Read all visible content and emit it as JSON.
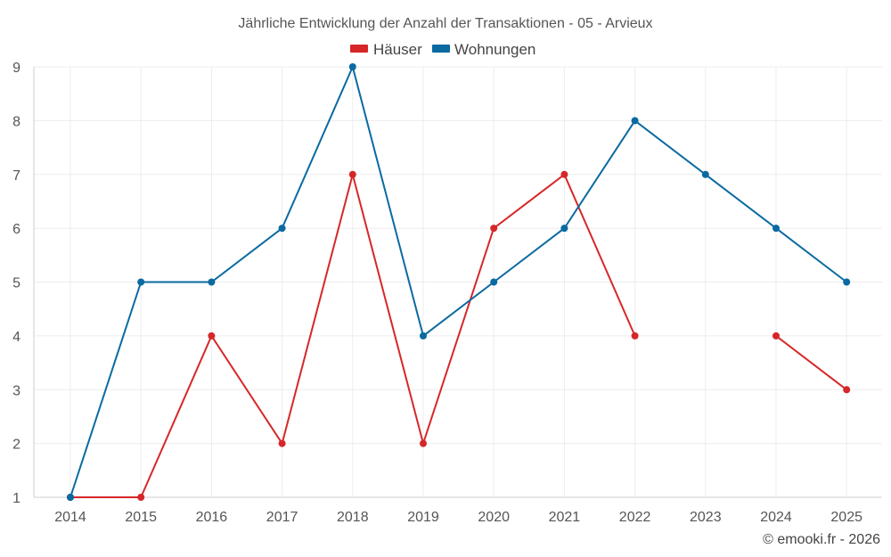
{
  "chart_data": {
    "type": "line",
    "title": "Jährliche Entwicklung der Anzahl der Transaktionen - 05 - Arvieux",
    "xlabel": "",
    "ylabel": "",
    "categories": [
      "2014",
      "2015",
      "2016",
      "2017",
      "2018",
      "2019",
      "2020",
      "2021",
      "2022",
      "2023",
      "2024",
      "2025"
    ],
    "ylim": [
      1,
      9
    ],
    "yticks": [
      1,
      2,
      3,
      4,
      5,
      6,
      7,
      8,
      9
    ],
    "grid": true,
    "legend_position": "top-center",
    "series": [
      {
        "name": "Häuser",
        "color": "#d62728",
        "values": [
          1,
          1,
          4,
          2,
          7,
          2,
          6,
          7,
          4,
          null,
          4,
          3
        ]
      },
      {
        "name": "Wohnungen",
        "color": "#0a6aa1",
        "values": [
          1,
          5,
          5,
          6,
          9,
          4,
          5,
          6,
          8,
          7,
          6,
          5
        ]
      }
    ]
  },
  "credit": "© emooki.fr - 2026"
}
